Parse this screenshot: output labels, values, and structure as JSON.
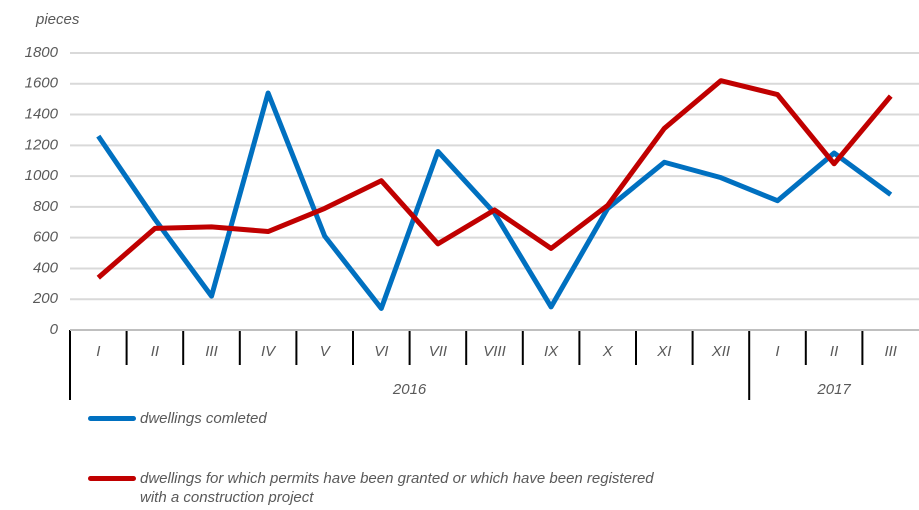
{
  "chart_data": {
    "type": "line",
    "y_label": "pieces",
    "groups": [
      {
        "name": "2016",
        "categories": [
          "I",
          "II",
          "III",
          "IV",
          "V",
          "VI",
          "VII",
          "VIII",
          "IX",
          "X",
          "XI",
          "XII"
        ]
      },
      {
        "name": "2017",
        "categories": [
          "I",
          "II",
          "III"
        ]
      }
    ],
    "series": [
      {
        "name": "dwellings comleted",
        "color": "#0070c0",
        "values": [
          1260,
          720,
          220,
          1540,
          610,
          140,
          1160,
          760,
          150,
          790,
          1090,
          990,
          840,
          1150,
          880
        ]
      },
      {
        "name": "dwellings for which permits have been granted or which have been registered with a construction project",
        "color": "#c00000",
        "values": [
          340,
          660,
          670,
          640,
          790,
          970,
          560,
          780,
          530,
          810,
          1310,
          1620,
          1530,
          1080,
          1520
        ]
      }
    ],
    "ylim": [
      0,
      1800
    ],
    "yticks": [
      0,
      200,
      400,
      600,
      800,
      1000,
      1200,
      1400,
      1600,
      1800
    ],
    "grid": true
  }
}
